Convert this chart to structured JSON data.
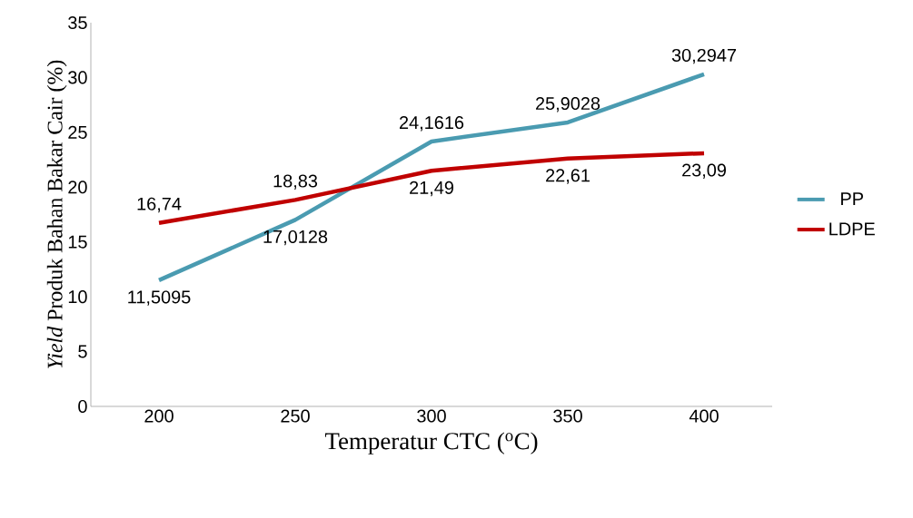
{
  "chart_data": {
    "type": "line",
    "xlabel": "Temperatur CTC ($^{o}$C)",
    "ylabel": "*Yield* Produk Bahan Bakar Cair  (%)",
    "categories": [
      "200",
      "250",
      "300",
      "350",
      "400"
    ],
    "series": [
      {
        "name": "PP",
        "color": "#4a9bb1",
        "values": [
          11.5095,
          17.0128,
          24.1616,
          25.9028,
          30.2947
        ],
        "value_labels": [
          "11,5095",
          "17,0128",
          "24,1616",
          "25,9028",
          "30,2947"
        ]
      },
      {
        "name": "LDPE",
        "color": "#c00000",
        "values": [
          16.74,
          18.83,
          21.49,
          22.61,
          23.09
        ],
        "value_labels": [
          "16,74",
          "18,83",
          "21,49",
          "22,61",
          "23,09"
        ]
      }
    ],
    "ylim": [
      0,
      35
    ],
    "yticks": [
      0,
      5,
      10,
      15,
      20,
      25,
      30,
      35
    ],
    "grid": false,
    "legend": "right"
  }
}
